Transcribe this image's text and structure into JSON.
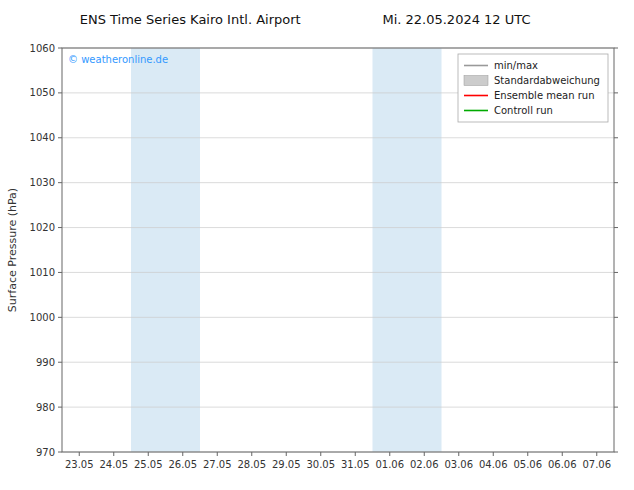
{
  "chart_data": {
    "type": "line",
    "title": "ENS Time Series Kairo Intl. Airport",
    "subtitle": "Mi. 22.05.2024 12 UTC",
    "y_label": "Surface Pressure (hPa)",
    "ylim": [
      970,
      1060
    ],
    "yticks": [
      970,
      980,
      990,
      1000,
      1010,
      1020,
      1030,
      1040,
      1050,
      1060
    ],
    "grid": true,
    "legend": "upper right",
    "categories": [
      "23.05",
      "24.05",
      "25.05",
      "26.05",
      "27.05",
      "28.05",
      "29.05",
      "30.05",
      "31.05",
      "01.06",
      "02.06",
      "03.06",
      "04.06",
      "05.06",
      "06.06",
      "07.06"
    ],
    "series": [
      {
        "name": "min/max",
        "color": "#999999",
        "type": "line",
        "values": [
          null,
          null,
          null,
          null,
          null,
          null,
          null,
          null,
          null,
          null,
          null,
          null,
          null,
          null,
          null,
          null
        ]
      },
      {
        "name": "Standardabweichung",
        "color": "#cccccc",
        "type": "area",
        "values": [
          null,
          null,
          null,
          null,
          null,
          null,
          null,
          null,
          null,
          null,
          null,
          null,
          null,
          null,
          null,
          null
        ]
      },
      {
        "name": "Ensemble mean run",
        "color": "#ff0000",
        "type": "line",
        "values": [
          null,
          null,
          null,
          null,
          null,
          null,
          null,
          null,
          null,
          null,
          null,
          null,
          null,
          null,
          null,
          null
        ]
      },
      {
        "name": "Controll run",
        "color": "#00aa00",
        "type": "line",
        "values": [
          null,
          null,
          null,
          null,
          null,
          null,
          null,
          null,
          null,
          null,
          null,
          null,
          null,
          null,
          null,
          null
        ]
      }
    ],
    "shaded_regions": [
      {
        "from": "25.05",
        "to": "26.05",
        "color": "#daeaf5"
      },
      {
        "from": "01.06",
        "to": "02.06",
        "color": "#daeaf5"
      }
    ],
    "annotations": [
      {
        "text": "© weatheronline.de",
        "color": "#3399ff"
      }
    ]
  }
}
